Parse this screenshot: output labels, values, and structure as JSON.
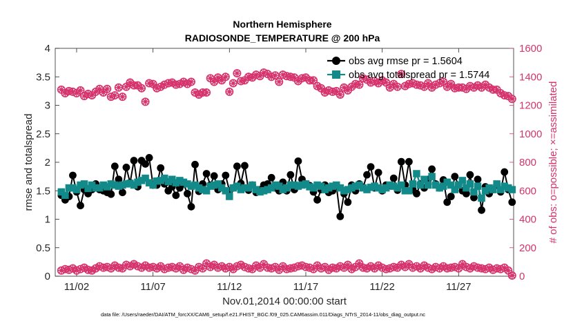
{
  "colors": {
    "rmse": "#000000",
    "spread": "#138a8a",
    "obs": "#d6336c",
    "axis": "#262626"
  },
  "chart_data": {
    "type": "line",
    "title_line1": "Northern Hemisphere",
    "title_line2": "RADIOSONDE_TEMPERATURE @ 200 hPa",
    "xlabel": "Nov.01,2014 00:00:00 start",
    "ylabel_left": "rmse and totalspread",
    "ylabel_right": "# of obs: o=possible; ×=assimilated",
    "footer": "data file: /Users/raeder/DAI/ATM_forcXX/CAM6_setup/f.e21.FHIST_BGC.f09_025.CAM6assim.011/Diags_NTrS_2014-11/obs_diag_output.nc",
    "xlim": [
      0.6,
      30.6
    ],
    "ylim_left": [
      0,
      4
    ],
    "ylim_right": [
      0,
      1600
    ],
    "x_ticks": [
      2,
      7,
      12,
      17,
      22,
      27
    ],
    "x_tick_labels": [
      "11/02",
      "11/07",
      "11/12",
      "11/17",
      "11/22",
      "11/27"
    ],
    "y_left_ticks": [
      "0",
      "0.5",
      "1",
      "1.5",
      "2",
      "2.5",
      "3",
      "3.5",
      "4"
    ],
    "y_right_ticks": [
      "0",
      "200",
      "400",
      "600",
      "800",
      "1000",
      "1200",
      "1400",
      "1600"
    ],
    "legend": {
      "rmse": "obs avg rmse pr = 1.5604",
      "spread": "obs avg totalspread pr = 1.5744"
    },
    "x": [
      1.0,
      1.25,
      1.5,
      1.75,
      2.0,
      2.25,
      2.5,
      2.75,
      3.0,
      3.25,
      3.5,
      3.75,
      4.0,
      4.25,
      4.5,
      4.75,
      5.0,
      5.25,
      5.5,
      5.75,
      6.0,
      6.25,
      6.5,
      6.75,
      7.0,
      7.25,
      7.5,
      7.75,
      8.0,
      8.25,
      8.5,
      8.75,
      9.0,
      9.25,
      9.5,
      9.75,
      10.0,
      10.25,
      10.5,
      10.75,
      11.0,
      11.25,
      11.5,
      11.75,
      12.0,
      12.25,
      12.5,
      12.75,
      13.0,
      13.25,
      13.5,
      13.75,
      14.0,
      14.25,
      14.5,
      14.75,
      15.0,
      15.25,
      15.5,
      15.75,
      16.0,
      16.25,
      16.5,
      16.75,
      17.0,
      17.25,
      17.5,
      17.75,
      18.0,
      18.25,
      18.5,
      18.75,
      19.0,
      19.25,
      19.5,
      19.75,
      20.0,
      20.25,
      20.5,
      20.75,
      21.0,
      21.25,
      21.5,
      21.75,
      22.0,
      22.25,
      22.5,
      22.75,
      23.0,
      23.25,
      23.5,
      23.75,
      24.0,
      24.25,
      24.5,
      24.75,
      25.0,
      25.25,
      25.5,
      25.75,
      26.0,
      26.25,
      26.5,
      26.75,
      27.0,
      27.25,
      27.5,
      27.75,
      28.0,
      28.25,
      28.5,
      28.75,
      29.0,
      29.25,
      29.5,
      29.75,
      30.0,
      30.25,
      30.5
    ],
    "series": [
      {
        "name": "obs avg rmse pr",
        "axis": "left",
        "values": [
          1.42,
          1.34,
          1.4,
          1.77,
          1.48,
          1.24,
          1.52,
          1.45,
          1.52,
          1.62,
          1.52,
          1.5,
          1.47,
          1.44,
          1.93,
          1.7,
          1.47,
          1.91,
          1.64,
          2.03,
          1.57,
          2.03,
          1.97,
          2.08,
          1.6,
          1.6,
          1.9,
          1.62,
          1.5,
          1.57,
          1.42,
          1.55,
          1.62,
          1.45,
          1.22,
          1.96,
          1.49,
          1.62,
          1.8,
          1.6,
          1.76,
          1.52,
          1.62,
          1.77,
          1.5,
          1.55,
          1.93,
          1.63,
          1.94,
          1.51,
          1.6,
          1.47,
          1.52,
          1.6,
          1.62,
          1.73,
          1.55,
          1.5,
          1.65,
          1.5,
          1.78,
          1.52,
          2.02,
          1.7,
          1.62,
          1.59,
          1.48,
          1.34,
          1.52,
          1.6,
          1.47,
          1.5,
          1.59,
          1.05,
          1.45,
          1.3,
          1.6,
          1.5,
          1.62,
          1.56,
          1.78,
          1.92,
          1.55,
          1.82,
          1.5,
          1.6,
          1.59,
          1.72,
          1.51,
          2.01,
          1.6,
          2.01,
          1.52,
          1.45,
          1.62,
          1.55,
          1.7,
          1.88,
          1.62,
          1.55,
          1.69,
          1.3,
          1.4,
          1.75,
          1.6,
          1.5,
          1.45,
          1.78,
          1.38,
          1.7,
          1.16,
          1.57,
          1.45,
          1.52,
          1.6,
          1.48,
          1.83,
          1.52,
          1.3
        ]
      },
      {
        "name": "obs avg totalspread pr",
        "axis": "left",
        "values": [
          1.48,
          1.42,
          1.55,
          1.55,
          1.52,
          1.6,
          1.62,
          1.54,
          1.6,
          1.55,
          1.55,
          1.6,
          1.57,
          1.62,
          1.6,
          1.58,
          1.6,
          1.62,
          1.63,
          1.6,
          1.65,
          1.68,
          1.72,
          1.64,
          1.6,
          1.67,
          1.68,
          1.72,
          1.66,
          1.7,
          1.64,
          1.68,
          1.65,
          1.62,
          1.58,
          1.6,
          1.55,
          1.52,
          1.5,
          1.58,
          1.6,
          1.62,
          1.55,
          1.5,
          1.4,
          1.55,
          1.58,
          1.52,
          1.55,
          1.55,
          1.6,
          1.52,
          1.48,
          1.5,
          1.52,
          1.55,
          1.6,
          1.58,
          1.52,
          1.55,
          1.6,
          1.6,
          1.58,
          1.6,
          1.62,
          1.57,
          1.55,
          1.6,
          1.58,
          1.52,
          1.55,
          1.58,
          1.6,
          1.55,
          1.5,
          1.52,
          1.55,
          1.58,
          1.6,
          1.55,
          1.52,
          1.56,
          1.58,
          1.55,
          1.52,
          1.55,
          1.6,
          1.58,
          1.55,
          1.6,
          1.5,
          1.5,
          1.62,
          1.8,
          1.6,
          1.7,
          1.6,
          1.75,
          1.6,
          1.55,
          1.58,
          1.65,
          1.6,
          1.52,
          1.6,
          1.68,
          1.55,
          1.62,
          1.48,
          1.58,
          1.37,
          1.5,
          1.55,
          1.52,
          1.62,
          1.52,
          1.58,
          1.55,
          1.52
        ]
      },
      {
        "name": "# of obs possible",
        "axis": "right",
        "values": [
          1310,
          1285,
          1300,
          1295,
          1285,
          1305,
          1265,
          1280,
          1270,
          1295,
          1315,
          1290,
          1315,
          1260,
          1270,
          1325,
          1260,
          1330,
          1360,
          1340,
          1340,
          1320,
          1225,
          1355,
          1350,
          1320,
          1330,
          1345,
          1355,
          1360,
          1345,
          1350,
          1365,
          1350,
          1365,
          1290,
          1275,
          1290,
          1290,
          1390,
          1365,
          1395,
          1375,
          1400,
          1295,
          1355,
          1425,
          1370,
          1375,
          1400,
          1395,
          1415,
          1405,
          1430,
          1420,
          1400,
          1410,
          1365,
          1415,
          1405,
          1400,
          1395,
          1370,
          1390,
          1395,
          1375,
          1375,
          1335,
          1320,
          1290,
          1305,
          1295,
          1300,
          1275,
          1325,
          1305,
          1330,
          1350,
          1345,
          1390,
          1380,
          1360,
          1370,
          1355,
          1375,
          1360,
          1325,
          1350,
          1330,
          1420,
          1335,
          1350,
          1355,
          1345,
          1340,
          1330,
          1355,
          1325,
          1345,
          1355,
          1365,
          1330,
          1350,
          1320,
          1325,
          1325,
          1315,
          1335,
          1325,
          1340,
          1325,
          1345,
          1325,
          1310,
          1310,
          1285,
          1270,
          1265,
          1245
        ]
      },
      {
        "name": "# of obs assimilated",
        "axis": "right",
        "values": [
          1310,
          1285,
          1300,
          1295,
          1285,
          1305,
          1265,
          1280,
          1270,
          1295,
          1315,
          1290,
          1315,
          1260,
          1270,
          1325,
          1260,
          1330,
          1360,
          1340,
          1340,
          1320,
          1225,
          1355,
          1350,
          1320,
          1330,
          1345,
          1355,
          1360,
          1345,
          1350,
          1365,
          1350,
          1365,
          1290,
          1275,
          1290,
          1290,
          1390,
          1365,
          1395,
          1375,
          1400,
          1295,
          1355,
          1425,
          1370,
          1375,
          1400,
          1395,
          1415,
          1405,
          1430,
          1420,
          1400,
          1410,
          1365,
          1415,
          1405,
          1400,
          1395,
          1370,
          1390,
          1395,
          1375,
          1375,
          1335,
          1320,
          1290,
          1305,
          1295,
          1300,
          1275,
          1325,
          1305,
          1330,
          1350,
          1345,
          1390,
          1380,
          1360,
          1370,
          1355,
          1375,
          1360,
          1325,
          1350,
          1330,
          1420,
          1335,
          1350,
          1355,
          1345,
          1340,
          1330,
          1355,
          1325,
          1345,
          1355,
          1365,
          1330,
          1350,
          1320,
          1325,
          1325,
          1315,
          1335,
          1325,
          1340,
          1325,
          1345,
          1325,
          1310,
          1310,
          1285,
          1270,
          1265,
          1245
        ]
      },
      {
        "name": "# of obs (low)",
        "axis": "right",
        "values": [
          40,
          50,
          45,
          55,
          40,
          50,
          60,
          45,
          40,
          55,
          70,
          60,
          65,
          55,
          75,
          60,
          55,
          80,
          70,
          85,
          70,
          60,
          75,
          60,
          65,
          55,
          70,
          50,
          60,
          65,
          55,
          70,
          45,
          60,
          50,
          40,
          65,
          55,
          90,
          65,
          80,
          60,
          70,
          55,
          65,
          50,
          70,
          80,
          65,
          55,
          50,
          75,
          60,
          85,
          60,
          55,
          65,
          45,
          70,
          50,
          55,
          60,
          70,
          75,
          65,
          60,
          50,
          75,
          55,
          65,
          45,
          60,
          55,
          70,
          60,
          80,
          50,
          65,
          90,
          60,
          55,
          70,
          55,
          75,
          60,
          50,
          55,
          65,
          60,
          80,
          65,
          85,
          60,
          70,
          55,
          75,
          60,
          50,
          65,
          55,
          70,
          55,
          60,
          65,
          55,
          85,
          65,
          55,
          70,
          60,
          55,
          50,
          60,
          45,
          55,
          50,
          60,
          40,
          5
        ]
      }
    ]
  }
}
